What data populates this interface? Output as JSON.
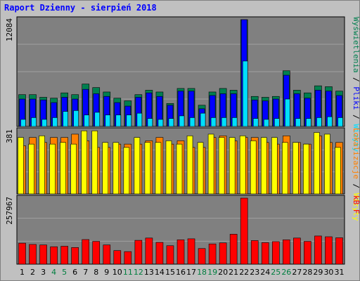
{
  "chart_data": {
    "title": "Raport Dzienny -  sierpień 2018",
    "categories": [
      "1",
      "2",
      "3",
      "4",
      "5",
      "6",
      "7",
      "8",
      "9",
      "10",
      "11",
      "12",
      "13",
      "14",
      "15",
      "16",
      "17",
      "18",
      "19",
      "20",
      "21",
      "22",
      "23",
      "24",
      "25",
      "26",
      "27",
      "28",
      "29",
      "30",
      "31"
    ],
    "weekend_days": [
      4,
      5,
      11,
      12,
      18,
      19,
      25,
      26
    ],
    "colors": {
      "background": "#c0c0c0",
      "panel": "#808080",
      "title": "#0000ff",
      "weekday_label": "#000000",
      "weekend_label": "#007f3f",
      "wyswietlenia_stron": "#007f4f",
      "pliki": "#0000ff",
      "wizyty": "#00dfff",
      "lokalizacje": "#ffff00",
      "wizyty_top": "#ff8000",
      "kb": "#ff0000"
    },
    "panels": [
      {
        "id": "top",
        "type": "bar",
        "max_label": "12084",
        "ylim": [
          0,
          12084
        ],
        "legend": [
          {
            "text": "Wyświetlenia",
            "color": "#007f4f"
          },
          {
            "text": " / ",
            "color": "#000000"
          },
          {
            "text": "Pliki",
            "color": "#0000ff"
          },
          {
            "text": " / ",
            "color": "#000000"
          },
          {
            "text": "Wizyty",
            "color": "#00dfff"
          }
        ],
        "series": [
          {
            "name": "Wyświetlenia",
            "values": [
              3600,
              3600,
              3300,
              3200,
              3800,
              3600,
              4800,
              4400,
              3900,
              3200,
              2900,
              3600,
              4100,
              3900,
              2600,
              4300,
              4300,
              2400,
              3900,
              4300,
              4100,
              12084,
              3400,
              3300,
              3400,
              6300,
              4100,
              3800,
              4600,
              4500,
              4000
            ]
          },
          {
            "name": "Pliki",
            "values": [
              3100,
              3100,
              3000,
              2700,
              3300,
              3100,
              4200,
              3700,
              3400,
              2700,
              2300,
              3300,
              3800,
              3400,
              2400,
              4000,
              4000,
              2000,
              3500,
              3700,
              3700,
              12084,
              3000,
              2900,
              3100,
              5800,
              3700,
              3200,
              4100,
              4000,
              3500
            ]
          },
          {
            "name": "Wizyty",
            "values": [
              800,
              1000,
              800,
              1000,
              1700,
              1800,
              1300,
              1600,
              1300,
              1300,
              1300,
              1500,
              900,
              800,
              900,
              1200,
              1000,
              1500,
              1000,
              1000,
              1000,
              7400,
              900,
              800,
              900,
              3100,
              900,
              900,
              1000,
              1100,
              1000
            ]
          }
        ]
      },
      {
        "id": "mid",
        "type": "bar",
        "max_label": "381",
        "ylim": [
          0,
          381
        ],
        "legend": [
          {
            "text": "Lokalizacje",
            "color": "#ff8000"
          },
          {
            "text": " / ",
            "color": "#000000"
          },
          {
            "text": "Wizyty",
            "color": "#ffff00"
          }
        ],
        "series": [
          {
            "name": "Lokalizacje",
            "values": [
              290,
              340,
              310,
              340,
              340,
              360,
              320,
              280,
              280,
              300,
              300,
              300,
              320,
              340,
              300,
              320,
              280,
              280,
              340,
              350,
              320,
              340,
              340,
              310,
              300,
              350,
              310,
              300,
              350,
              310,
              310
            ]
          },
          {
            "name": "Wizyty",
            "values": [
              340,
              300,
              350,
              300,
              310,
              300,
              380,
              380,
              310,
              310,
              280,
              340,
              310,
              310,
              320,
              300,
              350,
              310,
              360,
              340,
              340,
              350,
              320,
              340,
              340,
              310,
              310,
              300,
              370,
              360,
              280
            ]
          }
        ]
      },
      {
        "id": "bot",
        "type": "bar",
        "max_label": "257967",
        "ylim": [
          0,
          257967
        ],
        "legend": [
          {
            "text": "kB F",
            "color": "#ff0000"
          }
        ],
        "series": [
          {
            "name": "kB F",
            "values": [
              82000,
              77000,
              75000,
              68000,
              70000,
              65000,
              96000,
              89000,
              75000,
              53000,
              49000,
              93000,
              102000,
              85000,
              72000,
              95000,
              99000,
              61000,
              79000,
              83000,
              117000,
              257967,
              92000,
              84000,
              88000,
              95000,
              102000,
              89000,
              110000,
              107000,
              103000
            ]
          }
        ]
      }
    ]
  }
}
